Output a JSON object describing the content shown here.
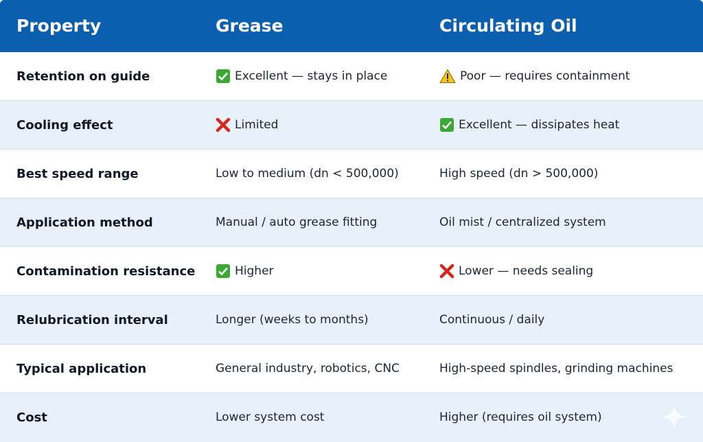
{
  "table": {
    "header": [
      "Property",
      "Grease",
      "Circulating Oil"
    ],
    "rows": [
      [
        "Retention on guide",
        "Excellent — stays in place",
        "Poor — requires containment"
      ],
      [
        "Cooling effect",
        "Limited",
        "Excellent — dissipates heat"
      ],
      [
        "Best speed range",
        "Low to medium (dn < 500,000)",
        "High speed (dn > 500,000)"
      ],
      [
        "Application method",
        "Manual / auto grease fitting",
        "Oil mist / centralized system"
      ],
      [
        "Contamination resistance",
        "Higher",
        "Lower — needs sealing"
      ],
      [
        "Relubrication interval",
        "Longer (weeks to months)",
        "Continuous / daily"
      ],
      [
        "Typical application",
        "General industry, robotics, CNC",
        "High-speed spindles, grinding machines"
      ],
      [
        "Cost",
        "Lower system cost",
        "Higher (requires oil system)"
      ]
    ]
  }
}
